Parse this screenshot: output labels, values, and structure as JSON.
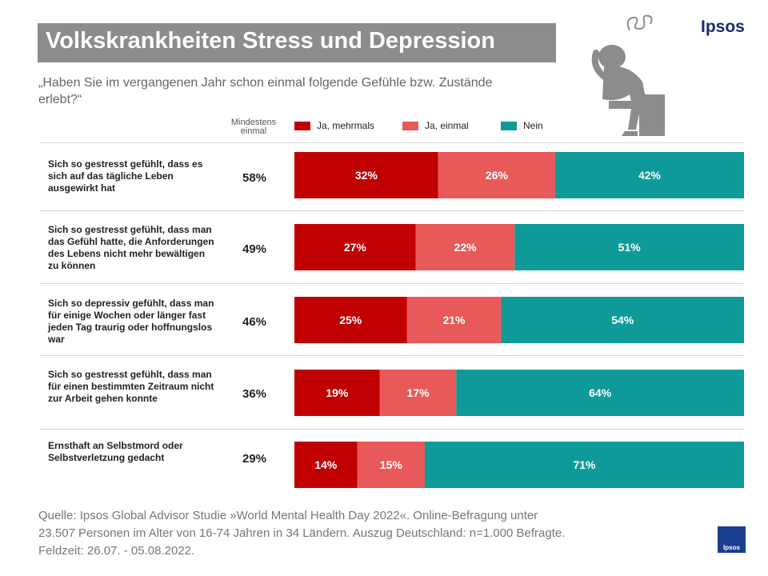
{
  "title": "Volkskrankheiten Stress und Depression",
  "question": "„Haben Sie im vergangenen Jahr schon einmal folgende Gefühle bzw. Zustände erlebt?“",
  "brand": "Ipsos",
  "column_header": {
    "line1": "Mindestens",
    "line2": "einmal"
  },
  "legend": [
    {
      "label": "Ja, mehrmals",
      "color": "#c00000"
    },
    {
      "label": "Ja, einmal",
      "color": "#e85a5a"
    },
    {
      "label": "Nein",
      "color": "#0e9a98"
    }
  ],
  "rows": [
    {
      "label": "Sich so gestresst gefühlt, dass es sich auf das tägliche Leben ausgewirkt hat",
      "total": "58%"
    },
    {
      "label": "Sich so gestresst gefühlt, dass man das Gefühl hatte, die Anforderungen des Lebens nicht mehr bewältigen zu können",
      "total": "49%"
    },
    {
      "label": "Sich so depressiv gefühlt, dass man für einige Wochen oder länger fast jeden Tag traurig oder hoffnungslos war",
      "total": "46%"
    },
    {
      "label": "Sich so gestresst gefühlt, dass man für einen bestimmten Zeitraum nicht zur Arbeit gehen konnte",
      "total": "36%"
    },
    {
      "label": "Ernsthaft an Selbstmord oder Selbstverletzung gedacht",
      "total": "29%"
    }
  ],
  "chart_data": {
    "type": "bar",
    "orientation": "horizontal",
    "stacked": true,
    "title": "Volkskrankheiten Stress und Depression",
    "categories": [
      "Sich so gestresst gefühlt, dass es sich auf das tägliche Leben ausgewirkt hat",
      "Sich so gestresst gefühlt, dass man das Gefühl hatte, die Anforderungen des Lebens nicht mehr bewältigen zu können",
      "Sich so depressiv gefühlt, dass man für einige Wochen oder länger fast jeden Tag traurig oder hoffnungslos war",
      "Sich so gestresst gefühlt, dass man für einen bestimmten Zeitraum nicht zur Arbeit gehen konnte",
      "Ernsthaft an Selbstmord oder Selbstverletzung gedacht"
    ],
    "series": [
      {
        "name": "Ja, mehrmals",
        "values": [
          32,
          27,
          25,
          19,
          14
        ],
        "color": "#c00000"
      },
      {
        "name": "Ja, einmal",
        "values": [
          26,
          22,
          21,
          17,
          15
        ],
        "color": "#e85a5a"
      },
      {
        "name": "Nein",
        "values": [
          42,
          51,
          54,
          64,
          71
        ],
        "color": "#0e9a98"
      }
    ],
    "xlim": [
      0,
      100
    ],
    "value_suffix": "%",
    "legend_position": "top"
  },
  "source": {
    "line1": "Quelle: Ipsos Global Advisor Studie »World Mental Health Day 2022«. Online-Befragung unter",
    "line2": "23.507 Personen im Alter von 16-74 Jahren in 34 Ländern. Auszug Deutschland: n=1.000 Befragte.",
    "line3": "Feldzeit: 26.07. - 05.08.2022."
  },
  "footer_logo": "Ipsos"
}
